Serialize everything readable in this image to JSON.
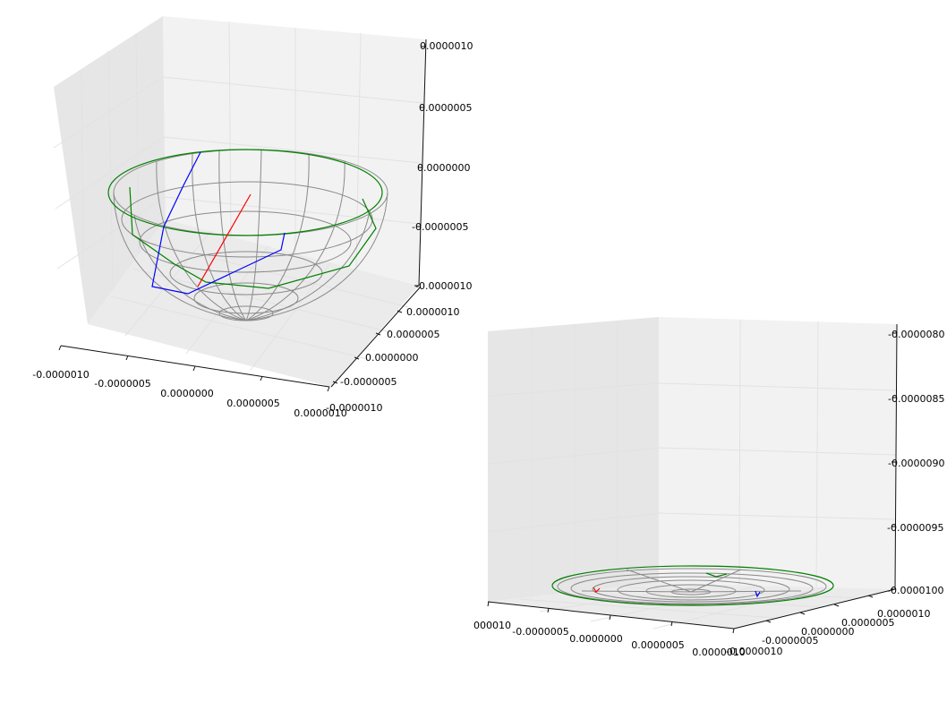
{
  "colors": {
    "wireframe": "#8a8a8a",
    "series_red": "#ff0000",
    "series_blue": "#0000ff",
    "series_green": "#008000",
    "pane_back": "#f2f2f2",
    "pane_floor": "#ebebeb"
  },
  "chart_data": [
    {
      "type": "3d-wireframe",
      "title": "",
      "description": "hemispherical bowl wireframe with red, blue and green trajectories, oblique view",
      "grid": true,
      "x_ticks": [
        "-0.0000010",
        "-0.0000005",
        "0.0000000",
        "0.0000005",
        "0.0000010"
      ],
      "y_ticks": [
        "0.0000010",
        "0.0000005",
        "0.0000000",
        "-0.0000005",
        "-0.0000010"
      ],
      "z_ticks": [
        "0.0000010",
        "0.0000005",
        "0.0000000",
        "-0.0000005",
        "-0.0000010"
      ],
      "xlim": [
        -1e-06,
        1e-06
      ],
      "ylim": [
        -1e-06,
        1e-06
      ],
      "zlim": [
        -1e-06,
        1e-06
      ],
      "series": [
        {
          "color": "red",
          "shape": "straight segment"
        },
        {
          "color": "blue",
          "shape": "bent path"
        },
        {
          "color": "green",
          "shape": "rim ellipse and bent path"
        }
      ]
    },
    {
      "type": "3d-wireframe",
      "title": "",
      "description": "same scene, near-edge-on view from low elevation",
      "grid": true,
      "x_ticks": [
        "000010",
        "-0.0000005",
        "0.0000000",
        "0.0000005",
        "0.0000010"
      ],
      "y_ticks": [
        "0.0000010",
        "0.0000005",
        "0.0000000",
        "-0.0000005",
        "-0.0000010"
      ],
      "z_ticks": [
        "-0.0000080",
        "-0.0000085",
        "-0.0000090",
        "-0.0000095",
        "-0.0000100"
      ],
      "xlim": [
        -1e-06,
        1e-06
      ],
      "ylim": [
        -1e-06,
        1e-06
      ],
      "zlim": [
        -1e-05,
        -8e-06
      ]
    }
  ]
}
